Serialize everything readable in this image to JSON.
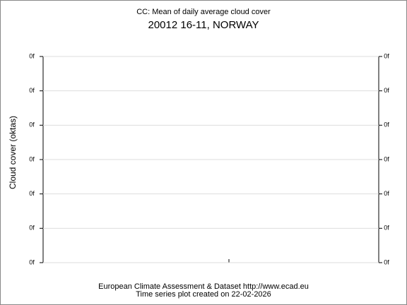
{
  "chart_data": {
    "type": "line",
    "title": "CC: Mean of daily average cloud cover",
    "subtitle": "20012 16-11, NORWAY",
    "ylabel": "Cloud cover (oktas)",
    "series": [],
    "ylim": [
      0,
      6
    ],
    "yticks": [
      {
        "value": 0,
        "label": "0f"
      },
      {
        "value": 1,
        "label": "0f"
      },
      {
        "value": 2,
        "label": "0f"
      },
      {
        "value": 3,
        "label": "0f"
      },
      {
        "value": 4,
        "label": "0f"
      },
      {
        "value": 5,
        "label": "0f"
      },
      {
        "value": 6,
        "label": "0f"
      }
    ],
    "grid": true,
    "footer": [
      "European Climate Assessment & Dataset  http://www.ecad.eu",
      "Time series plot created on 22-02-2026"
    ]
  }
}
